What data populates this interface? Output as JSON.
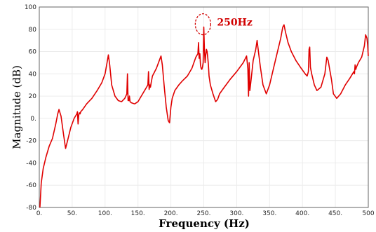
{
  "chart_data": {
    "type": "line",
    "xlabel": "Frequency (Hz)",
    "ylabel": "Magnitude (dB)",
    "xlim": [
      0,
      500
    ],
    "ylim": [
      -80,
      100
    ],
    "x_ticks": [
      "0.",
      "50.",
      "100.",
      "150.",
      "200.",
      "250.",
      "300.",
      "350.",
      "400.",
      "450.",
      "500"
    ],
    "y_ticks": [
      "100",
      "80",
      "60",
      "40",
      "20",
      "0.",
      "-20",
      "-40",
      "-60",
      "-80"
    ],
    "grid": true,
    "line_color": "#e00000",
    "annotation": {
      "text": "250Hz",
      "x": 252,
      "y": 82,
      "color": "#d10000"
    },
    "series": [
      {
        "x": [
          1,
          3,
          6,
          10,
          15,
          20,
          25,
          28,
          30,
          33,
          37,
          40,
          43,
          48,
          53,
          57,
          58,
          59,
          60,
          61,
          62,
          63,
          66,
          72,
          80,
          88,
          95,
          100,
          103,
          105,
          107,
          110,
          115,
          120,
          125,
          130,
          133,
          134,
          135,
          136,
          137,
          138,
          140,
          145,
          150,
          155,
          162,
          165,
          166,
          167,
          168,
          169,
          170,
          172,
          178,
          183,
          185,
          187,
          190,
          193,
          196,
          198,
          200,
          202,
          206,
          212,
          218,
          225,
          232,
          238,
          241,
          242,
          243,
          244,
          245,
          246,
          247,
          248,
          249,
          250,
          251,
          252,
          253,
          254,
          255,
          256,
          257,
          258,
          260,
          264,
          268,
          271,
          274,
          280,
          290,
          300,
          310,
          315,
          317,
          318,
          319,
          320,
          322,
          325,
          329,
          331,
          333,
          336,
          340,
          345,
          350,
          356,
          362,
          367,
          370,
          372,
          374,
          378,
          383,
          390,
          398,
          404,
          407,
          409,
          410,
          411,
          412,
          414,
          418,
          422,
          428,
          434,
          437,
          439,
          441,
          444,
          447,
          452,
          458,
          465,
          472,
          478,
          479,
          480,
          481,
          482,
          485,
          490,
          494,
          496,
          498,
          499,
          500
        ],
        "y": [
          -80,
          -58,
          -45,
          -35,
          -25,
          -18,
          -5,
          4,
          8,
          2,
          -15,
          -27,
          -20,
          -8,
          0,
          4,
          6,
          -5,
          3,
          5,
          4,
          6,
          8,
          13,
          18,
          25,
          32,
          40,
          50,
          57,
          48,
          30,
          20,
          16,
          15,
          18,
          22,
          40,
          16,
          16,
          20,
          15,
          14,
          13,
          15,
          20,
          27,
          30,
          42,
          26,
          30,
          28,
          32,
          38,
          45,
          53,
          56,
          48,
          28,
          10,
          -2,
          -4,
          10,
          18,
          25,
          30,
          34,
          38,
          45,
          55,
          58,
          68,
          54,
          58,
          48,
          45,
          44,
          46,
          50,
          82,
          62,
          50,
          57,
          62,
          60,
          55,
          48,
          38,
          30,
          22,
          15,
          17,
          22,
          27,
          35,
          42,
          50,
          56,
          45,
          20,
          50,
          25,
          35,
          52,
          62,
          70,
          60,
          46,
          30,
          22,
          30,
          45,
          60,
          72,
          82,
          84,
          78,
          68,
          60,
          52,
          45,
          40,
          38,
          42,
          62,
          64,
          46,
          40,
          30,
          25,
          28,
          40,
          55,
          52,
          45,
          35,
          22,
          18,
          22,
          30,
          36,
          42,
          40,
          48,
          44,
          46,
          50,
          55,
          65,
          75,
          72,
          66,
          56
        ]
      }
    ]
  }
}
